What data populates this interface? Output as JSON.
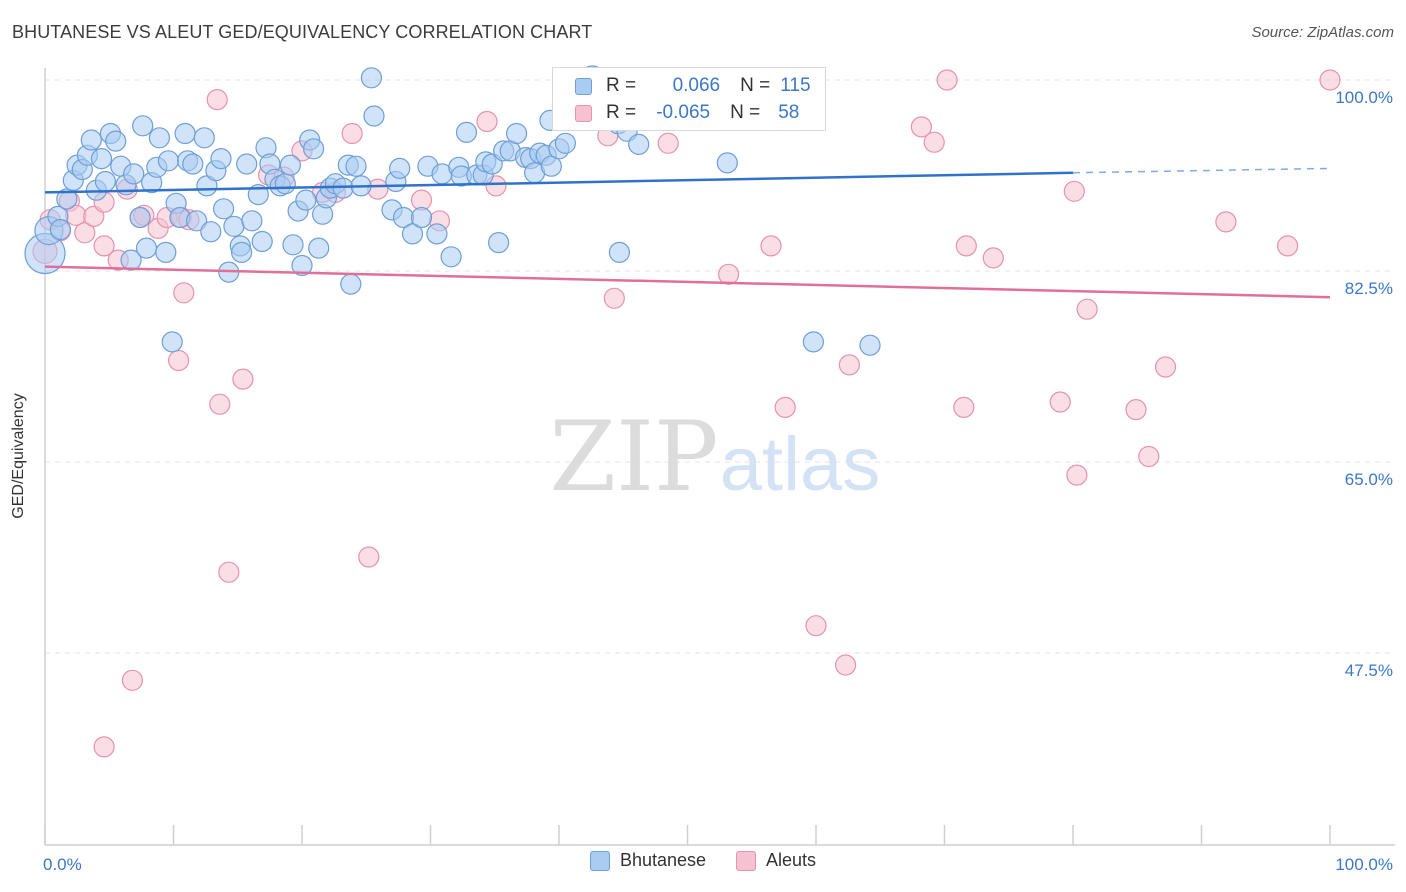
{
  "title": "BHUTANESE VS ALEUT GED/EQUIVALENCY CORRELATION CHART",
  "source": "Source: ZipAtlas.com",
  "watermark": {
    "zip": "ZIP",
    "atlas": "atlas"
  },
  "colors": {
    "blue_fill": "#aaccf2",
    "blue_stroke": "#6d9fd8",
    "blue_line": "#2f72cc",
    "pink_fill": "#f6c2d2",
    "pink_stroke": "#e792ae",
    "pink_line": "#e0709a",
    "tick_label": "#3b78c6",
    "grid": "#e3e3e3"
  },
  "legend": {
    "rows": [
      {
        "series": "Bhutanese",
        "r_label": "R =",
        "r_value": "0.066",
        "n_label": "N =",
        "n_value": "115"
      },
      {
        "series": "Aleuts",
        "r_label": "R =",
        "r_value": "-0.065",
        "n_label": "N =",
        "n_value": "58"
      }
    ]
  },
  "chart_data": {
    "type": "scatter",
    "title": "BHUTANESE VS ALEUT GED/EQUIVALENCY CORRELATION CHART",
    "xlabel": "",
    "ylabel": "GED/Equivalency",
    "xlim": [
      0,
      100
    ],
    "ylim": [
      30,
      101.5
    ],
    "x_tick_labels": [
      {
        "value": 0,
        "label": "0.0%"
      },
      {
        "value": 100,
        "label": "100.0%"
      }
    ],
    "y_tick_labels": [
      {
        "value": 100,
        "label": "100.0%"
      },
      {
        "value": 82.5,
        "label": "82.5%"
      },
      {
        "value": 65,
        "label": "65.0%"
      },
      {
        "value": 47.5,
        "label": "47.5%"
      }
    ],
    "grid": true,
    "legend_position": "top-center",
    "series": [
      {
        "name": "Bhutanese",
        "color": "#aaccf2",
        "trend": {
          "x0": 0,
          "y0": 89.7,
          "x1": 80,
          "y1": 91.5,
          "dashed_to_x": 100,
          "dashed_to_y": 91.9
        },
        "points": [
          [
            0,
            84.1,
            20
          ],
          [
            0.3,
            86.2,
            14
          ],
          [
            1,
            87.5,
            10
          ],
          [
            1.2,
            86.3,
            10
          ],
          [
            1.7,
            89.1,
            10
          ],
          [
            2.2,
            90.8,
            10
          ],
          [
            2.5,
            92.2,
            10
          ],
          [
            2.9,
            91.8,
            10
          ],
          [
            3.3,
            93.1,
            10
          ],
          [
            3.6,
            94.5,
            10
          ],
          [
            4.0,
            89.9,
            10
          ],
          [
            4.4,
            92.8,
            10
          ],
          [
            4.7,
            90.7,
            10
          ],
          [
            5.1,
            95.1,
            10
          ],
          [
            5.5,
            94.4,
            10
          ],
          [
            5.9,
            92.1,
            10
          ],
          [
            6.3,
            90.4,
            10
          ],
          [
            6.7,
            83.5,
            10
          ],
          [
            6.9,
            91.4,
            10
          ],
          [
            7.4,
            87.4,
            10
          ],
          [
            7.6,
            95.8,
            10
          ],
          [
            7.9,
            84.6,
            10
          ],
          [
            8.3,
            90.6,
            10
          ],
          [
            8.7,
            92.0,
            10
          ],
          [
            8.9,
            94.7,
            10
          ],
          [
            9.4,
            84.2,
            10
          ],
          [
            9.6,
            92.6,
            10
          ],
          [
            9.9,
            76.0,
            10
          ],
          [
            10.2,
            88.7,
            10
          ],
          [
            10.5,
            87.4,
            10
          ],
          [
            10.9,
            95.1,
            10
          ],
          [
            11.1,
            92.6,
            10
          ],
          [
            11.5,
            92.3,
            10
          ],
          [
            11.8,
            87.1,
            10
          ],
          [
            12.4,
            94.7,
            10
          ],
          [
            12.6,
            90.3,
            10
          ],
          [
            12.9,
            86.1,
            10
          ],
          [
            13.3,
            91.7,
            10
          ],
          [
            13.7,
            92.8,
            10
          ],
          [
            13.9,
            88.2,
            10
          ],
          [
            14.3,
            82.4,
            10
          ],
          [
            14.7,
            86.6,
            10
          ],
          [
            15.2,
            84.8,
            10
          ],
          [
            15.3,
            84.2,
            10
          ],
          [
            15.7,
            92.3,
            10
          ],
          [
            16.1,
            87.1,
            10
          ],
          [
            16.6,
            89.5,
            10
          ],
          [
            16.9,
            85.2,
            10
          ],
          [
            17.2,
            93.8,
            10
          ],
          [
            17.5,
            92.3,
            10
          ],
          [
            17.9,
            90.9,
            10
          ],
          [
            18.3,
            90.3,
            10
          ],
          [
            18.7,
            90.5,
            10
          ],
          [
            19.1,
            92.2,
            10
          ],
          [
            19.3,
            84.9,
            10
          ],
          [
            19.7,
            88.0,
            10
          ],
          [
            20.0,
            83.0,
            10
          ],
          [
            20.3,
            89.0,
            10
          ],
          [
            20.6,
            94.5,
            10
          ],
          [
            20.9,
            93.7,
            10
          ],
          [
            21.3,
            84.6,
            10
          ],
          [
            21.6,
            87.7,
            10
          ],
          [
            21.9,
            89.2,
            10
          ],
          [
            22.2,
            90.1,
            10
          ],
          [
            22.6,
            90.5,
            10
          ],
          [
            23.2,
            90.1,
            10
          ],
          [
            23.6,
            92.2,
            10
          ],
          [
            23.8,
            81.3,
            10
          ],
          [
            24.2,
            92.1,
            10
          ],
          [
            24.6,
            90.3,
            10
          ],
          [
            25.4,
            100.2,
            10
          ],
          [
            25.6,
            96.7,
            10
          ],
          [
            27.0,
            88.1,
            10
          ],
          [
            27.3,
            90.7,
            10
          ],
          [
            27.6,
            91.9,
            10
          ],
          [
            27.9,
            87.4,
            10
          ],
          [
            28.6,
            85.9,
            10
          ],
          [
            29.3,
            87.4,
            10
          ],
          [
            29.8,
            92.1,
            10
          ],
          [
            30.5,
            85.9,
            10
          ],
          [
            30.9,
            91.4,
            10
          ],
          [
            31.6,
            83.8,
            10
          ],
          [
            32.2,
            92.0,
            10
          ],
          [
            32.4,
            91.2,
            10
          ],
          [
            32.8,
            95.2,
            10
          ],
          [
            33.6,
            91.3,
            10
          ],
          [
            34.1,
            91.3,
            10
          ],
          [
            34.3,
            92.5,
            10
          ],
          [
            34.8,
            92.3,
            10
          ],
          [
            35.3,
            85.1,
            10
          ],
          [
            35.7,
            93.5,
            10
          ],
          [
            36.2,
            93.5,
            10
          ],
          [
            36.7,
            95.1,
            10
          ],
          [
            37.4,
            92.9,
            10
          ],
          [
            37.8,
            92.8,
            10
          ],
          [
            38.1,
            91.5,
            10
          ],
          [
            38.5,
            93.3,
            10
          ],
          [
            39.0,
            93.1,
            10
          ],
          [
            39.3,
            96.3,
            10
          ],
          [
            39.4,
            92.1,
            10
          ],
          [
            40.0,
            93.7,
            10
          ],
          [
            40.5,
            94.2,
            10
          ],
          [
            42.4,
            99.3,
            10
          ],
          [
            42.6,
            100.0,
            14
          ],
          [
            43.5,
            99.1,
            10
          ],
          [
            44.0,
            97.6,
            10
          ],
          [
            44.2,
            96.8,
            10
          ],
          [
            44.6,
            96.0,
            10
          ],
          [
            45.0,
            96.4,
            10
          ],
          [
            45.3,
            95.3,
            10
          ],
          [
            45.6,
            97.2,
            10
          ],
          [
            44.7,
            84.2,
            10
          ],
          [
            46.2,
            94.1,
            10
          ],
          [
            53.1,
            92.4,
            10
          ],
          [
            59.8,
            76.0,
            10
          ],
          [
            64.2,
            75.7,
            10
          ]
        ]
      },
      {
        "name": "Aleuts",
        "color": "#f6c2d2",
        "trend": {
          "x0": 0,
          "y0": 82.9,
          "x1": 100,
          "y1": 80.1
        },
        "points": [
          [
            0,
            84.3,
            12
          ],
          [
            0.4,
            87.2,
            10
          ],
          [
            1.2,
            86.2,
            10
          ],
          [
            1.9,
            88.9,
            10
          ],
          [
            2.4,
            87.6,
            10
          ],
          [
            3.1,
            86.0,
            10
          ],
          [
            3.8,
            87.5,
            10
          ],
          [
            4.6,
            88.8,
            10
          ],
          [
            4.6,
            84.8,
            10
          ],
          [
            4.6,
            38.9,
            10
          ],
          [
            5.7,
            83.5,
            10
          ],
          [
            6.4,
            90.0,
            10
          ],
          [
            6.8,
            45.0,
            10
          ],
          [
            7.4,
            87.4,
            10
          ],
          [
            7.7,
            87.6,
            10
          ],
          [
            8.8,
            86.4,
            10
          ],
          [
            9.5,
            87.4,
            10
          ],
          [
            10.6,
            87.4,
            10
          ],
          [
            10.4,
            74.3,
            10
          ],
          [
            10.8,
            80.5,
            10
          ],
          [
            11.2,
            87.2,
            10
          ],
          [
            13.4,
            98.2,
            10
          ],
          [
            13.6,
            70.3,
            10
          ],
          [
            14.3,
            54.9,
            10
          ],
          [
            15.4,
            72.6,
            10
          ],
          [
            17.4,
            91.3,
            10
          ],
          [
            18.6,
            91.1,
            10
          ],
          [
            20.0,
            93.5,
            10
          ],
          [
            21.6,
            89.7,
            10
          ],
          [
            22.6,
            89.7,
            10
          ],
          [
            23.9,
            95.1,
            10
          ],
          [
            25.9,
            90.0,
            10
          ],
          [
            25.2,
            56.3,
            10
          ],
          [
            29.3,
            89.0,
            10
          ],
          [
            30.7,
            87.1,
            10
          ],
          [
            34.4,
            96.2,
            10
          ],
          [
            35.1,
            90.3,
            10
          ],
          [
            42.3,
            99.0,
            10
          ],
          [
            43.8,
            94.9,
            10
          ],
          [
            44.3,
            80.0,
            10
          ],
          [
            48.5,
            94.2,
            10
          ],
          [
            53.2,
            82.2,
            10
          ],
          [
            55.5,
            100.0,
            10
          ],
          [
            56.5,
            84.8,
            10
          ],
          [
            57.6,
            70.0,
            10
          ],
          [
            60.0,
            50.0,
            10
          ],
          [
            62.3,
            46.4,
            10
          ],
          [
            62.6,
            73.9,
            10
          ],
          [
            68.2,
            95.7,
            10
          ],
          [
            69.2,
            94.3,
            10
          ],
          [
            70.2,
            100.0,
            10
          ],
          [
            71.5,
            70.0,
            10
          ],
          [
            71.7,
            84.8,
            10
          ],
          [
            73.8,
            83.7,
            10
          ],
          [
            79.0,
            70.5,
            10
          ],
          [
            80.1,
            89.8,
            10
          ],
          [
            80.3,
            63.8,
            10
          ],
          [
            81.1,
            79.0,
            10
          ],
          [
            84.9,
            69.8,
            10
          ],
          [
            85.9,
            65.5,
            10
          ],
          [
            87.2,
            73.7,
            10
          ],
          [
            91.9,
            87.0,
            10
          ],
          [
            96.7,
            84.8,
            10
          ],
          [
            100.0,
            100.0,
            10
          ]
        ]
      }
    ]
  }
}
